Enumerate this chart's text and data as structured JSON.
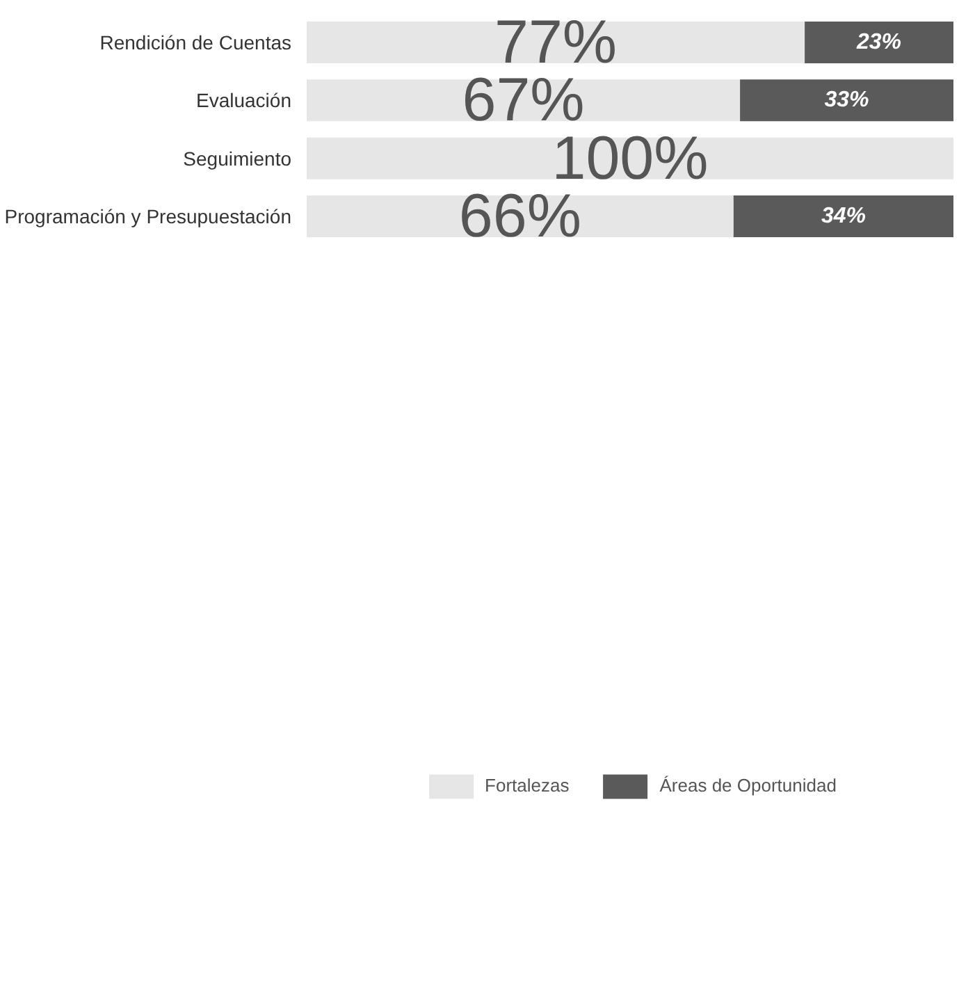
{
  "chart_data": {
    "type": "bar",
    "orientation": "horizontal",
    "stacked": true,
    "categories": [
      "Rendición de Cuentas",
      "Evaluación",
      "Seguimiento",
      "Programación y Presupuestación"
    ],
    "series": [
      {
        "name": "Fortalezas",
        "color": "#e6e6e6",
        "values": [
          77,
          67,
          100,
          66
        ],
        "value_labels": [
          "77%",
          "67%",
          "100%",
          "66%"
        ]
      },
      {
        "name": "Áreas de Oportunidad",
        "color": "#5a5a5a",
        "values": [
          23,
          33,
          0,
          34
        ],
        "value_labels": [
          "23%",
          "33%",
          null,
          "34%"
        ]
      }
    ],
    "tick_labels": "y",
    "grid": false,
    "legend": "bottom"
  }
}
